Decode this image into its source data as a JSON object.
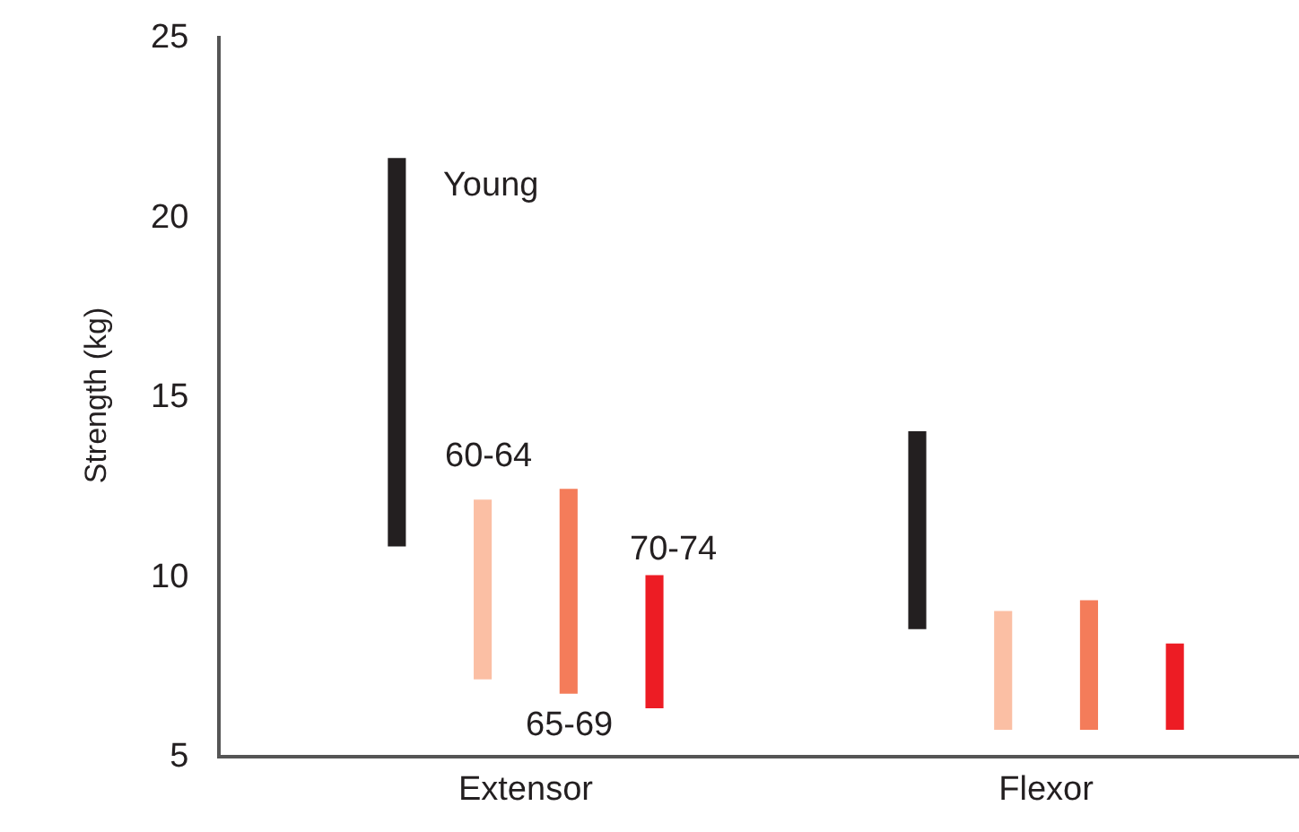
{
  "chart_data": {
    "type": "bar",
    "ylabel": "Strength (kg)",
    "categories": [
      "Extensor",
      "Flexor"
    ],
    "series": [
      {
        "name": "Young",
        "color": "#231f20",
        "base": [
          10.8,
          8.5
        ],
        "values": [
          10.8,
          5.5
        ]
      },
      {
        "name": "60-64",
        "color": "#fbbfa4",
        "base": [
          7.1,
          5.7
        ],
        "values": [
          5.0,
          3.3
        ]
      },
      {
        "name": "65-69",
        "color": "#f47c5a",
        "base": [
          6.7,
          5.7
        ],
        "values": [
          5.7,
          3.6
        ]
      },
      {
        "name": "70-74",
        "color": "#ed1c24",
        "base": [
          6.3,
          5.7
        ],
        "values": [
          3.7,
          2.4
        ]
      }
    ],
    "ylim": [
      5,
      25
    ],
    "yticks": [
      5,
      10,
      15,
      20,
      25
    ],
    "legend": false
  }
}
